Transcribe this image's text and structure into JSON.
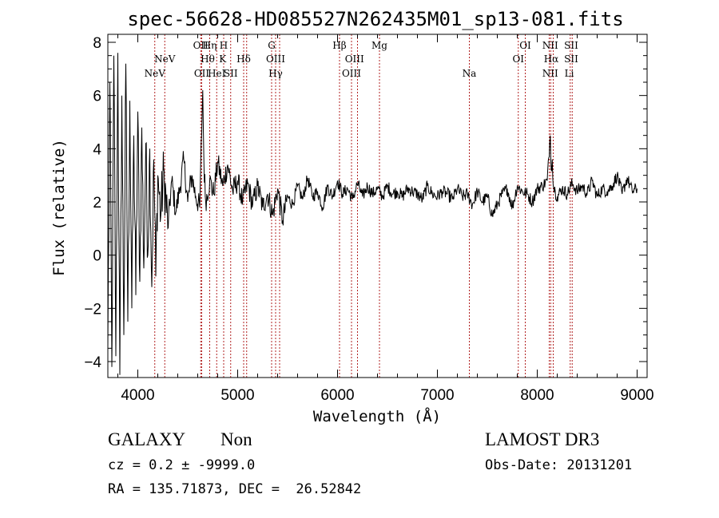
{
  "chart_data": {
    "type": "line",
    "title": "spec-56628-HD085527N262435M01_sp13-081.fits",
    "xlabel": "Wavelength (Å)",
    "ylabel": "Flux (relative)",
    "xlim": [
      3700,
      9100
    ],
    "ylim": [
      -4.6,
      8.3
    ],
    "xticks": [
      4000,
      5000,
      6000,
      7000,
      8000,
      9000
    ],
    "yticks": [
      -4,
      -2,
      0,
      2,
      4,
      6,
      8
    ],
    "grid": false,
    "legend": "none",
    "series": [
      {
        "x": [
          3700,
          3720,
          3740,
          3760,
          3780,
          3800,
          3820,
          3840,
          3860,
          3880,
          3900,
          3920,
          3940,
          3960,
          3980,
          4000,
          4020,
          4040,
          4060,
          4080,
          4100,
          4120,
          4140,
          4160,
          4180,
          4200,
          4230,
          4260,
          4300,
          4340,
          4380,
          4420,
          4460,
          4500,
          4540,
          4580,
          4620,
          4650,
          4662,
          4680,
          4720,
          4760,
          4800,
          4850,
          4900,
          4950,
          5000,
          5050,
          5100,
          5150,
          5200,
          5250,
          5300,
          5350,
          5400,
          5450,
          5500,
          5550,
          5600,
          5650,
          5700,
          5750,
          5800,
          5850,
          5900,
          5950,
          6000,
          6050,
          6100,
          6150,
          6200,
          6250,
          6300,
          6350,
          6400,
          6450,
          6500,
          6550,
          6600,
          6650,
          6700,
          6750,
          6800,
          6850,
          6900,
          6950,
          7000,
          7050,
          7100,
          7150,
          7200,
          7250,
          7300,
          7350,
          7400,
          7450,
          7500,
          7550,
          7600,
          7650,
          7700,
          7750,
          7800,
          7850,
          7900,
          7950,
          8000,
          8050,
          8100,
          8130,
          8140,
          8150,
          8160,
          8180,
          8200,
          8250,
          8300,
          8350,
          8400,
          8450,
          8500,
          8550,
          8600,
          8650,
          8700,
          8750,
          8800,
          8850,
          8900,
          8950,
          9000
        ],
        "y": [
          -3.5,
          6.5,
          -4.2,
          7.5,
          -3.8,
          7.6,
          -4.5,
          6.0,
          -3.0,
          7.2,
          -2.5,
          5.8,
          -2.0,
          4.5,
          -1.5,
          5.4,
          -1.0,
          4.8,
          -0.5,
          4.2,
          0.0,
          4.0,
          -1.2,
          3.6,
          -0.8,
          3.0,
          1.5,
          3.2,
          1.0,
          2.8,
          1.6,
          2.5,
          3.6,
          2.0,
          3.0,
          2.2,
          1.8,
          6.2,
          3.4,
          2.0,
          2.8,
          2.3,
          3.5,
          2.6,
          3.4,
          2.4,
          2.8,
          2.0,
          2.7,
          1.9,
          2.6,
          1.8,
          2.3,
          1.5,
          2.5,
          1.3,
          2.2,
          1.9,
          2.6,
          2.1,
          2.9,
          2.2,
          2.4,
          1.8,
          2.6,
          2.2,
          2.8,
          2.3,
          2.5,
          2.1,
          2.7,
          2.2,
          2.6,
          2.3,
          2.5,
          2.2,
          2.6,
          2.3,
          2.4,
          2.2,
          2.5,
          2.4,
          2.3,
          2.1,
          2.6,
          2.3,
          2.2,
          2.4,
          2.3,
          2.1,
          2.5,
          2.2,
          2.3,
          1.9,
          2.4,
          2.0,
          2.2,
          1.5,
          1.9,
          2.3,
          2.5,
          1.8,
          2.6,
          2.4,
          2.3,
          2.0,
          2.5,
          2.6,
          2.8,
          4.5,
          3.2,
          3.6,
          2.6,
          2.4,
          2.2,
          2.5,
          2.3,
          2.7,
          2.4,
          2.6,
          2.3,
          2.8,
          2.2,
          2.5,
          2.4,
          2.6,
          3.0,
          2.3,
          2.9,
          2.4,
          2.5
        ]
      }
    ],
    "spectral_lines": [
      {
        "label": "NeV",
        "x": 4170,
        "row": 2
      },
      {
        "label": "NeV",
        "x": 4270,
        "row": 1
      },
      {
        "label": "OII",
        "x": 4630,
        "row": 0
      },
      {
        "label": "OII",
        "x": 4640,
        "row": 2
      },
      {
        "label": "Hη",
        "x": 4720,
        "row": 0
      },
      {
        "label": "Hθ",
        "x": 4700,
        "row": 1
      },
      {
        "label": "HeI",
        "x": 4790,
        "row": 2
      },
      {
        "label": "H",
        "x": 4860,
        "row": 0
      },
      {
        "label": "K",
        "x": 4850,
        "row": 1
      },
      {
        "label": "SII",
        "x": 4930,
        "row": 2
      },
      {
        "label": "Hδ",
        "x": 5060,
        "row": 1
      },
      {
        "label": "G",
        "x": 5340,
        "row": 0
      },
      {
        "label": "OIII",
        "x": 5380,
        "row": 1
      },
      {
        "label": "Hγ",
        "x": 5380,
        "row": 2
      },
      {
        "label": "Hβ",
        "x": 6020,
        "row": 0
      },
      {
        "label": "OIII",
        "x": 6170,
        "row": 1
      },
      {
        "label": "OIII",
        "x": 6140,
        "row": 2
      },
      {
        "label": "Mg",
        "x": 6420,
        "row": 0
      },
      {
        "label": "Na",
        "x": 7320,
        "row": 2
      },
      {
        "label": "OI",
        "x": 7880,
        "row": 0
      },
      {
        "label": "OI",
        "x": 7810,
        "row": 1
      },
      {
        "label": "NII",
        "x": 8130,
        "row": 0
      },
      {
        "label": "Hα",
        "x": 8140,
        "row": 1
      },
      {
        "label": "NII",
        "x": 8130,
        "row": 2
      },
      {
        "label": "SII",
        "x": 8340,
        "row": 0
      },
      {
        "label": "SII",
        "x": 8340,
        "row": 1
      },
      {
        "label": "Li",
        "x": 8320,
        "row": 2
      }
    ],
    "line_positions": [
      4170,
      4270,
      4630,
      4640,
      4720,
      4790,
      4860,
      4930,
      5060,
      5090,
      5340,
      5380,
      5420,
      6020,
      6140,
      6200,
      6420,
      7320,
      7810,
      7880,
      8120,
      8135,
      8160,
      8330,
      8350
    ]
  },
  "info": {
    "object_class": "GALAXY",
    "subclass": "Non",
    "survey": "LAMOST DR3",
    "redshift": "cz = 0.2 ± -9999.0",
    "obs_date": "Obs-Date: 20131201",
    "coords": "RA = 135.71873, DEC =  26.52842"
  },
  "colors": {
    "spectrum": "#000000",
    "line_marker": "#b22222",
    "axes": "#000000"
  }
}
